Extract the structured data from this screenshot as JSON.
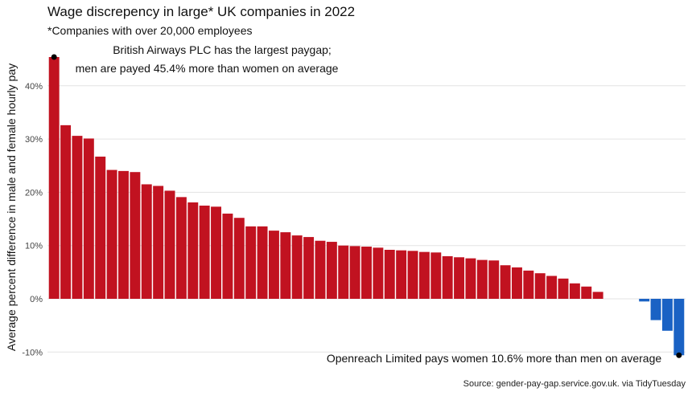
{
  "chart_data": {
    "type": "bar",
    "title": "Wage discrepency in large* UK companies in 2022",
    "subtitle": "*Companies with over 20,000 employees",
    "ylabel": "Average percent difference in male and female hourly pay",
    "xlabel": "",
    "ylim": [
      -11,
      47
    ],
    "yticks": [
      -10,
      0,
      10,
      20,
      30,
      40
    ],
    "ytick_labels": [
      "-10%",
      "0%",
      "10%",
      "20%",
      "30%",
      "40%"
    ],
    "grid": "horizontal",
    "values": [
      45.4,
      32.6,
      30.6,
      30.1,
      26.7,
      24.2,
      24.0,
      23.8,
      21.5,
      21.2,
      20.3,
      19.1,
      18.1,
      17.5,
      17.3,
      16.0,
      15.2,
      13.6,
      13.6,
      12.8,
      12.5,
      11.9,
      11.6,
      10.9,
      10.7,
      10.0,
      9.9,
      9.8,
      9.6,
      9.2,
      9.1,
      9.0,
      8.8,
      8.7,
      8.0,
      7.8,
      7.6,
      7.3,
      7.2,
      6.3,
      5.9,
      5.3,
      4.8,
      4.3,
      3.8,
      2.9,
      2.3,
      1.3,
      0,
      0,
      0,
      -0.5,
      -4.0,
      -6.0,
      -10.6
    ],
    "positive_color": "#c11220",
    "negative_color": "#1a62c4",
    "highlight_points": [
      {
        "index": 0,
        "value": 45.4
      },
      {
        "index": 54,
        "value": -10.6
      }
    ],
    "annotations": [
      "British Airways PLC has the largest paygap;",
      "men are payed 45.4% more than women on average",
      "Openreach Limited pays women 10.6% more than men on average"
    ],
    "caption": "Source: gender-pay-gap.service.gov.uk. via TidyTuesday"
  }
}
